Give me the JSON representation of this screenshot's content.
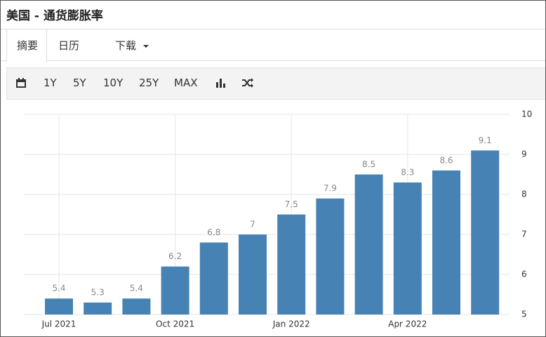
{
  "header": {
    "title": "美国 - 通货膨胀率"
  },
  "tabs": [
    "摘要",
    "日历",
    "下载"
  ],
  "toolbar": [
    "1Y",
    "5Y",
    "10Y",
    "25Y",
    "MAX"
  ],
  "chart_data": {
    "type": "bar",
    "categories": [
      "Jul 2021",
      null,
      null,
      "Oct 2021",
      null,
      null,
      "Jan 2022",
      null,
      null,
      "Apr 2022",
      null,
      null
    ],
    "values": [
      5.4,
      5.3,
      5.4,
      6.2,
      6.8,
      7,
      7.5,
      7.9,
      8.5,
      8.3,
      8.6,
      9.1
    ],
    "color": "#4682b4",
    "ylim": [
      5,
      10
    ],
    "yticks": [
      5,
      6,
      7,
      8,
      9,
      10
    ],
    "grid": true
  }
}
